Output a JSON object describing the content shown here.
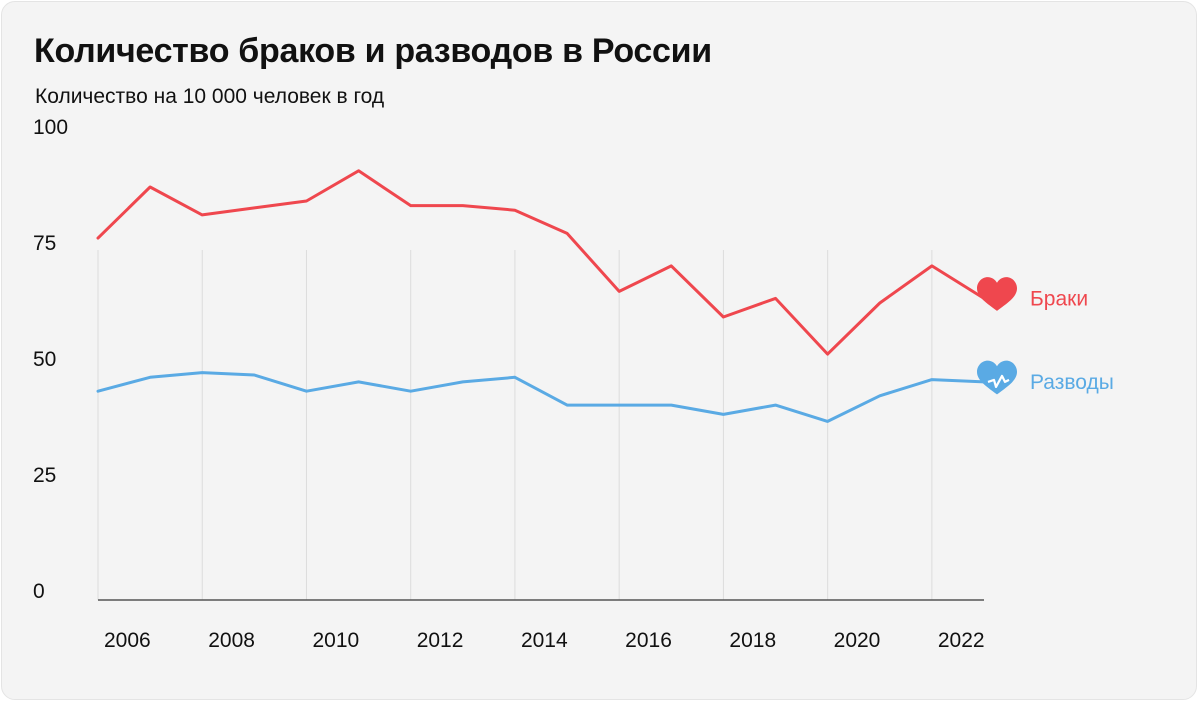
{
  "title": "Количество браков и разводов в России",
  "subtitle": "Количество на 10 000 человек в год",
  "colors": {
    "marriages": "#ef474e",
    "divorces": "#5aaae4",
    "grid": "#dcdcdc",
    "axis": "#555555",
    "text": "#111111",
    "background": "#f4f4f4"
  },
  "chart_data": {
    "type": "line",
    "title": "Количество браков и разводов в России",
    "subtitle": "Количество на 10 000 человек в год",
    "x": [
      2006,
      2007,
      2008,
      2009,
      2010,
      2011,
      2012,
      2013,
      2014,
      2015,
      2016,
      2017,
      2018,
      2019,
      2020,
      2021,
      2022,
      2023
    ],
    "x_tick_labels": [
      "2006",
      "2008",
      "2010",
      "2012",
      "2014",
      "2016",
      "2018",
      "2020",
      "2022"
    ],
    "y_ticks": [
      "0",
      "25",
      "50",
      "75",
      "100"
    ],
    "ylim": [
      0,
      100
    ],
    "grid": "vertical",
    "series": [
      {
        "name": "Браки",
        "color": "#ef474e",
        "icon": "heart-icon",
        "values": [
          78,
          89,
          83,
          84.5,
          86,
          92.5,
          85,
          85,
          84,
          79,
          66.5,
          72,
          61,
          65,
          53,
          64,
          72,
          65
        ]
      },
      {
        "name": "Разводы",
        "color": "#5aaae4",
        "icon": "broken-heart-icon",
        "values": [
          45,
          48,
          49,
          48.5,
          45,
          47,
          45,
          47,
          48,
          42,
          42,
          42,
          40,
          42,
          38.5,
          44,
          47.5,
          47
        ]
      }
    ]
  }
}
